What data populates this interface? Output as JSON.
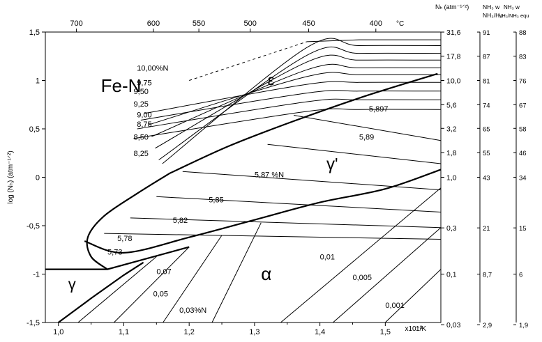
{
  "chart_data": {
    "type": "line",
    "title": "Fe-N",
    "xlabel_bottom": "1/K",
    "x_multiplier": "x10⁻³",
    "ylabel": "log (Nₕ) (atm⁻¹ᐟ²)",
    "xlim": [
      0.98,
      1.585
    ],
    "ylim": [
      -1.5,
      1.5
    ],
    "bottom_ticks": [
      "1,0",
      "1,1",
      "1,2",
      "1,3",
      "1,4",
      "1,5"
    ],
    "left_ticks": [
      "1,5",
      "1",
      "0,5",
      "0",
      "-0,5",
      "-1",
      "-1,5"
    ],
    "top_axis": {
      "unit": "°C",
      "ticks": [
        "700",
        "600",
        "550",
        "500",
        "450",
        "400"
      ]
    },
    "right_axes": {
      "nh_header": "Nₕ (atm⁻¹ᐟ²)",
      "nh_ticks": [
        "31,6",
        "17,8",
        "10,0",
        "5,6",
        "3,2",
        "1,8",
        "1,0",
        "0,3",
        "0,1",
        "0,03"
      ],
      "ratio_header_1": "NH₃ w",
      "ratio_header_2": "NH₃/H₂",
      "ratio_ticks": [
        "91",
        "87",
        "81",
        "74",
        "65",
        "55",
        "43",
        "21",
        "8,7",
        "2,9"
      ],
      "eq_header_1": "NH₃ w",
      "eq_header_2": "NH₃/NH₃ equ",
      "eq_ticks": [
        "88",
        "83",
        "76",
        "67",
        "58",
        "46",
        "34",
        "15",
        "6",
        "1,9"
      ]
    },
    "phase_labels": [
      "Fe-N",
      "ε",
      "γ'",
      "α",
      "γ"
    ],
    "epsilon_labels": [
      "10,00%N",
      "9,75",
      "9,50",
      "9,25",
      "9,00",
      "8,75",
      "8,50",
      "8,25"
    ],
    "gamma_prime_labels": [
      "5,897",
      "5,89",
      "5,87 %N",
      "5,85",
      "5,82",
      "5,78",
      "5,73"
    ],
    "alpha_labels": [
      "0,07",
      "0,05",
      "0,03%N",
      "0,01",
      "0,005",
      "0,001"
    ],
    "boundaries": {
      "eps_gp": [
        [
          1.17,
          0.04
        ],
        [
          1.26,
          0.32
        ],
        [
          1.36,
          0.58
        ],
        [
          1.47,
          0.84
        ],
        [
          1.58,
          1.07
        ]
      ],
      "gp_lower": [
        [
          1.04,
          -0.66
        ],
        [
          1.1,
          -0.78
        ],
        [
          1.2,
          -0.62
        ],
        [
          1.3,
          -0.44
        ],
        [
          1.4,
          -0.26
        ],
        [
          1.5,
          -0.12
        ],
        [
          1.585,
          0.08
        ]
      ],
      "alpha_gamma": [
        [
          0.98,
          -0.95
        ],
        [
          1.075,
          -0.95
        ],
        [
          1.2,
          -0.72
        ]
      ],
      "gamma_alpha": [
        [
          1.0,
          -1.5
        ],
        [
          1.05,
          -1.25
        ],
        [
          1.1,
          -1.01
        ],
        [
          1.13,
          -0.88
        ]
      ],
      "nose": [
        [
          1.17,
          0.04
        ],
        [
          1.12,
          -0.17
        ],
        [
          1.07,
          -0.4
        ],
        [
          1.045,
          -0.62
        ],
        [
          1.05,
          -0.82
        ],
        [
          1.075,
          -0.95
        ]
      ]
    }
  }
}
